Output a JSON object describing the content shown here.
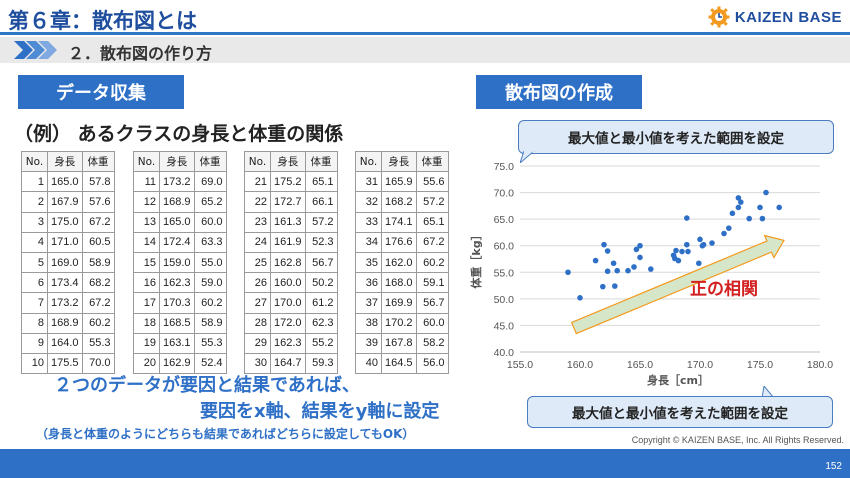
{
  "header": {
    "title": "第６章：散布図とは",
    "logo_text": "KAIZEN BASE",
    "subtitle": "２．散布図の作り方"
  },
  "left": {
    "section_label": "データ収集",
    "example_title": "（例） あるクラスの身長と体重の関係",
    "table_headers": [
      "No.",
      "身長",
      "体重"
    ],
    "rows": [
      [
        "1",
        "165.0",
        "57.8"
      ],
      [
        "2",
        "167.9",
        "57.6"
      ],
      [
        "3",
        "175.0",
        "67.2"
      ],
      [
        "4",
        "171.0",
        "60.5"
      ],
      [
        "5",
        "169.0",
        "58.9"
      ],
      [
        "6",
        "173.4",
        "68.2"
      ],
      [
        "7",
        "173.2",
        "67.2"
      ],
      [
        "8",
        "168.9",
        "60.2"
      ],
      [
        "9",
        "164.0",
        "55.3"
      ],
      [
        "10",
        "175.5",
        "70.0"
      ],
      [
        "11",
        "173.2",
        "69.0"
      ],
      [
        "12",
        "168.9",
        "65.2"
      ],
      [
        "13",
        "165.0",
        "60.0"
      ],
      [
        "14",
        "172.4",
        "63.3"
      ],
      [
        "15",
        "159.0",
        "55.0"
      ],
      [
        "16",
        "162.3",
        "59.0"
      ],
      [
        "17",
        "170.3",
        "60.2"
      ],
      [
        "18",
        "168.5",
        "58.9"
      ],
      [
        "19",
        "163.1",
        "55.3"
      ],
      [
        "20",
        "162.9",
        "52.4"
      ],
      [
        "21",
        "175.2",
        "65.1"
      ],
      [
        "22",
        "172.7",
        "66.1"
      ],
      [
        "23",
        "161.3",
        "57.2"
      ],
      [
        "24",
        "161.9",
        "52.3"
      ],
      [
        "25",
        "162.8",
        "56.7"
      ],
      [
        "26",
        "160.0",
        "50.2"
      ],
      [
        "27",
        "170.0",
        "61.2"
      ],
      [
        "28",
        "172.0",
        "62.3"
      ],
      [
        "29",
        "162.3",
        "55.2"
      ],
      [
        "30",
        "164.7",
        "59.3"
      ],
      [
        "31",
        "165.9",
        "55.6"
      ],
      [
        "32",
        "168.2",
        "57.2"
      ],
      [
        "33",
        "174.1",
        "65.1"
      ],
      [
        "34",
        "176.6",
        "67.2"
      ],
      [
        "35",
        "162.0",
        "60.2"
      ],
      [
        "36",
        "168.0",
        "59.1"
      ],
      [
        "37",
        "169.9",
        "56.7"
      ],
      [
        "38",
        "170.2",
        "60.0"
      ],
      [
        "39",
        "167.8",
        "58.2"
      ],
      [
        "40",
        "164.5",
        "56.0"
      ]
    ],
    "conclusion_line1": "２つのデータが要因と結果であれば、",
    "conclusion_line2": "要因をx軸、結果をy軸に設定",
    "note": "（身長と体重のようにどちらも結果であればどちらに設定してもOK）"
  },
  "right": {
    "section_label": "散布図の作成",
    "callout_y": "最大値と最小値を考えた範囲を設定",
    "callout_x": "最大値と最小値を考えた範囲を設定",
    "correlation_label": "正の相関"
  },
  "chart_data": {
    "type": "scatter",
    "xlabel": "身長［cm］",
    "ylabel": "体重［kg］",
    "xlim": [
      155.0,
      180.0
    ],
    "ylim": [
      40.0,
      75.0
    ],
    "x_ticks": [
      "155.0",
      "160.0",
      "165.0",
      "170.0",
      "175.0",
      "180.0"
    ],
    "y_ticks": [
      "40.0",
      "45.0",
      "50.0",
      "55.0",
      "60.0",
      "65.0",
      "70.0",
      "75.0"
    ],
    "grid": "horizontal",
    "points_from": "left.rows (身長 → x, 体重 → y)",
    "point_color": "#2f70c7",
    "arrow_fill": "#d6e6c8",
    "annotation_color": "#d22020"
  },
  "footer": {
    "copyright": "Copyright ©  KAIZEN BASE, Inc.  All Rights Reserved.",
    "page_number": "152"
  }
}
